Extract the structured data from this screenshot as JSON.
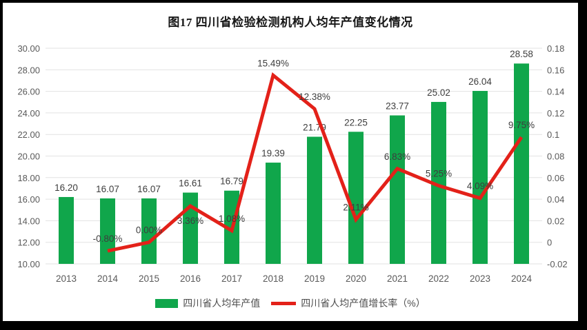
{
  "chart_data": {
    "type": "bar+line",
    "title": "图17  四川省检验检测机构人均年产值变化情况",
    "categories": [
      "2013",
      "2014",
      "2015",
      "2016",
      "2017",
      "2018",
      "2019",
      "2020",
      "2021",
      "2022",
      "2023",
      "2024"
    ],
    "series": [
      {
        "name": "四川省人均年产值",
        "type": "bar",
        "color": "#10A64B",
        "values": [
          16.2,
          16.07,
          16.07,
          16.61,
          16.79,
          19.39,
          21.79,
          22.25,
          23.77,
          25.02,
          26.04,
          28.58
        ],
        "labels": [
          "16.20",
          "16.07",
          "16.07",
          "16.61",
          "16.79",
          "19.39",
          "21.79",
          "22.25",
          "23.77",
          "25.02",
          "26.04",
          "28.58"
        ]
      },
      {
        "name": "四川省人均产值增长率（%）",
        "type": "line",
        "color": "#E32119",
        "values": [
          null,
          -0.008,
          0.0,
          0.0336,
          0.0108,
          0.1549,
          0.1238,
          0.0211,
          0.0683,
          0.0525,
          0.0409,
          0.0975
        ],
        "labels": [
          "",
          "-0.80%",
          "0.00%",
          "3.36%",
          "1.08%",
          "15.49%",
          "12.38%",
          "2.11%",
          "6.83%",
          "5.25%",
          "4.09%",
          "9.75%"
        ]
      }
    ],
    "left_axis": {
      "min": 10,
      "max": 30,
      "ticks": [
        "30.00",
        "28.00",
        "26.00",
        "24.00",
        "22.00",
        "20.00",
        "18.00",
        "16.00",
        "14.00",
        "12.00",
        "10.00"
      ]
    },
    "right_axis": {
      "min": -0.02,
      "max": 0.18,
      "ticks": [
        "0.18",
        "0.16",
        "0.14",
        "0.12",
        "0.1",
        "0.08",
        "0.06",
        "0.04",
        "0.02",
        "0",
        "-0.02"
      ]
    },
    "grid": true,
    "legend_position": "bottom",
    "grid_color": "#E2E2E2"
  }
}
